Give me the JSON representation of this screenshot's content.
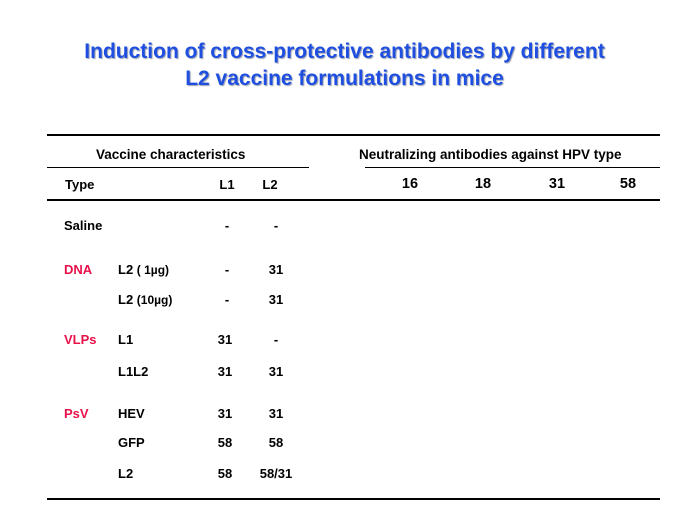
{
  "slide": {
    "title_line1": "Induction of cross-protective antibodies by different",
    "title_line2": "L2 vaccine formulations in mice"
  },
  "table": {
    "group_left": "Vaccine characteristics",
    "group_right": "Neutralizing  antibodies  against HPV  type",
    "col_type": "Type",
    "col_l1": "L1",
    "col_l2": "L2",
    "hpv_types": [
      "16",
      "18",
      "31",
      "58"
    ],
    "rows": [
      {
        "group": "Saline",
        "formulation": "",
        "formulation_detail": "",
        "l1": "-",
        "l2": "-"
      },
      {
        "group": "DNA",
        "formulation": "L2",
        "formulation_detail": "( 1µg)",
        "l1": "-",
        "l2": "31"
      },
      {
        "group": "",
        "formulation": "L2",
        "formulation_detail": "(10µg)",
        "l1": "-",
        "l2": "31"
      },
      {
        "group": "VLPs",
        "formulation": "L1",
        "formulation_detail": "",
        "l1": "31",
        "l2": "-"
      },
      {
        "group": "",
        "formulation": "L1L2",
        "formulation_detail": "",
        "l1": "31",
        "l2": "31"
      },
      {
        "group": "PsV",
        "formulation": "HEV",
        "formulation_detail": "",
        "l1": "31",
        "l2": "31"
      },
      {
        "group": "",
        "formulation": "GFP",
        "formulation_detail": "",
        "l1": "58",
        "l2": "58"
      },
      {
        "group": "",
        "formulation": "L2",
        "formulation_detail": "",
        "l1": "58",
        "l2": "58/31"
      }
    ]
  },
  "colors": {
    "title": "#1f4fe0",
    "group_highlight": "#e8124a"
  }
}
